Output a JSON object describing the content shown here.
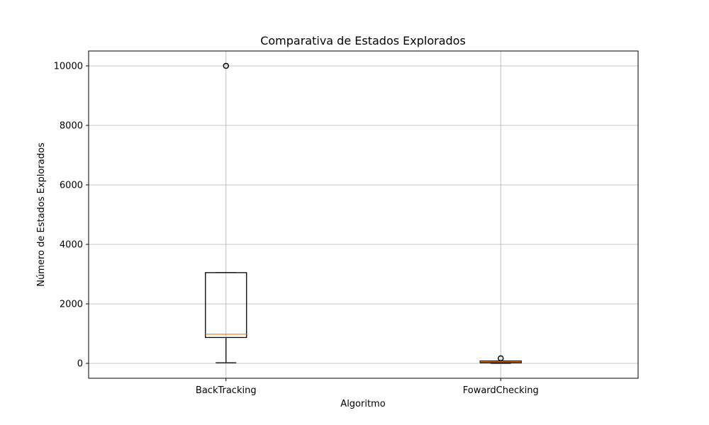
{
  "chart_data": {
    "type": "box",
    "title": "Comparativa de Estados Explorados",
    "xlabel": "Algoritmo",
    "ylabel": "Número de Estados Explorados",
    "categories": [
      "BackTracking",
      "FowardChecking"
    ],
    "ylim": [
      -500,
      10500
    ],
    "yticks": [
      0,
      2000,
      4000,
      6000,
      8000,
      10000
    ],
    "grid": true,
    "boxes": [
      {
        "name": "BackTracking",
        "whisker_low": 20,
        "q1": 870,
        "median": 980,
        "q3": 3050,
        "whisker_high": 3050,
        "outliers": [
          10000
        ]
      },
      {
        "name": "FowardChecking",
        "whisker_low": 5,
        "q1": 20,
        "median": 50,
        "q3": 80,
        "whisker_high": 80,
        "outliers": [
          170
        ]
      }
    ],
    "colors": {
      "box": "#000000",
      "median": "#ff7f0e",
      "grid": "#b0b0b0"
    }
  }
}
